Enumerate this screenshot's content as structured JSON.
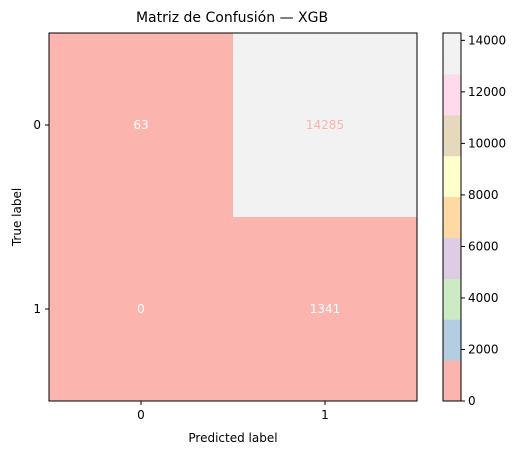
{
  "chart_data": {
    "type": "heatmap",
    "title": "Matriz de Confusión — XGB",
    "xlabel": "Predicted label",
    "ylabel": "True label",
    "x_categories": [
      "0",
      "1"
    ],
    "y_categories": [
      "0",
      "1"
    ],
    "values": [
      [
        63,
        14285
      ],
      [
        0,
        1341
      ]
    ],
    "colormap": "Pastel1",
    "colorbar": {
      "range": [
        0,
        14285
      ],
      "ticks": [
        0,
        2000,
        4000,
        6000,
        8000,
        10000,
        12000,
        14000
      ],
      "tick_labels": [
        "0",
        "2000",
        "4000",
        "6000",
        "8000",
        "10000",
        "12000",
        "14000"
      ],
      "colors": [
        "#fbb4ae",
        "#b3cde3",
        "#ccebc5",
        "#decbe4",
        "#fed9a6",
        "#ffffcc",
        "#e5d8bd",
        "#fddaec",
        "#f2f2f2"
      ]
    },
    "cell_text_colors": {
      "on_dark": "#ffffff",
      "on_light": "#fbb4ae"
    },
    "grid": false
  }
}
